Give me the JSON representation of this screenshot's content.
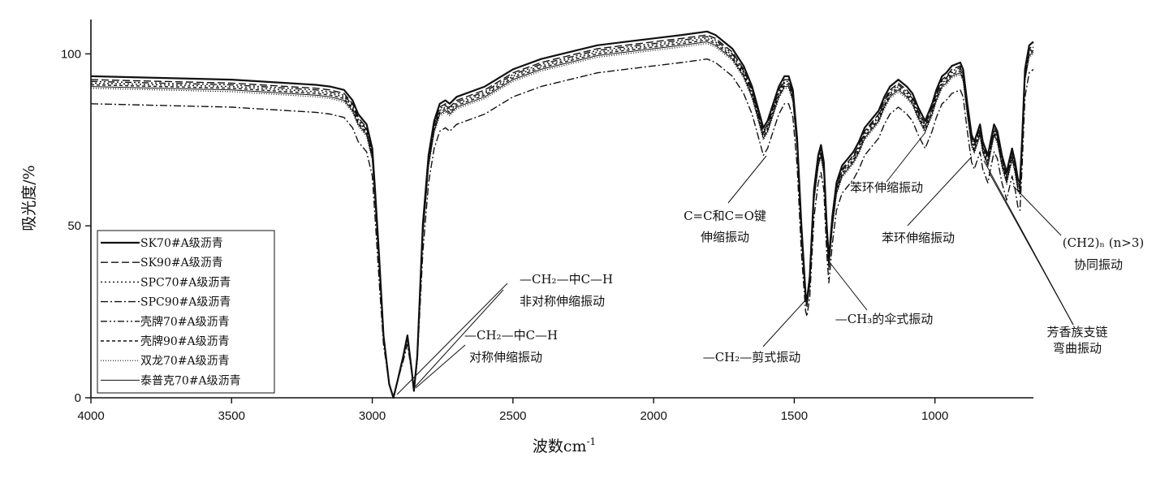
{
  "chart_data": {
    "type": "line",
    "xlabel": "波数cm",
    "xlabel_sup": "-1",
    "ylabel": "吸光度/%",
    "xlim": [
      4000,
      650
    ],
    "ylim": [
      0,
      110
    ],
    "x_reversed": true,
    "x_ticks": [
      4000,
      3500,
      3000,
      2500,
      2000,
      1500,
      1000
    ],
    "y_ticks": [
      0,
      50,
      100
    ],
    "grid": false,
    "legend_position": "center-left",
    "series": [
      {
        "name": "SK70#A级沥青",
        "style": "solid-thick",
        "offset": 0.5
      },
      {
        "name": "SK90#A级沥青",
        "style": "dashed",
        "offset": -0.5
      },
      {
        "name": "SPC70#A级沥青",
        "style": "dotted",
        "offset": -1.5
      },
      {
        "name": "SPC90#A级沥青",
        "style": "dashdot",
        "offset": -7.5
      },
      {
        "name": "壳牌70#A级沥青",
        "style": "dashdotdot",
        "offset": -1.0
      },
      {
        "name": "壳牌90#A级沥青",
        "style": "shortdash",
        "offset": -2.0
      },
      {
        "name": "双龙70#A级沥青",
        "style": "fine-dotted",
        "offset": -3.0
      },
      {
        "name": "泰普克70#A级沥青",
        "style": "solid-thin",
        "offset": -2.5
      }
    ],
    "base_curve": [
      [
        4000,
        93
      ],
      [
        3500,
        92
      ],
      [
        3300,
        91
      ],
      [
        3200,
        90.5
      ],
      [
        3150,
        90
      ],
      [
        3100,
        89
      ],
      [
        3070,
        86
      ],
      [
        3050,
        82
      ],
      [
        3020,
        79
      ],
      [
        3000,
        72
      ],
      [
        2990,
        60
      ],
      [
        2975,
        40
      ],
      [
        2960,
        18
      ],
      [
        2940,
        4
      ],
      [
        2925,
        0
      ],
      [
        2910,
        5
      ],
      [
        2890,
        12
      ],
      [
        2875,
        18
      ],
      [
        2860,
        8
      ],
      [
        2852,
        2
      ],
      [
        2840,
        12
      ],
      [
        2820,
        50
      ],
      [
        2800,
        70
      ],
      [
        2780,
        80
      ],
      [
        2760,
        85
      ],
      [
        2740,
        86
      ],
      [
        2725,
        85
      ],
      [
        2700,
        87
      ],
      [
        2600,
        90
      ],
      [
        2500,
        95
      ],
      [
        2400,
        98
      ],
      [
        2300,
        100
      ],
      [
        2200,
        102
      ],
      [
        2100,
        103
      ],
      [
        2000,
        104
      ],
      [
        1900,
        105
      ],
      [
        1810,
        106
      ],
      [
        1780,
        105
      ],
      [
        1720,
        101
      ],
      [
        1680,
        96
      ],
      [
        1650,
        90
      ],
      [
        1630,
        84
      ],
      [
        1610,
        78
      ],
      [
        1595,
        80
      ],
      [
        1575,
        85
      ],
      [
        1555,
        90
      ],
      [
        1535,
        93
      ],
      [
        1520,
        93
      ],
      [
        1505,
        89
      ],
      [
        1490,
        75
      ],
      [
        1475,
        50
      ],
      [
        1460,
        30
      ],
      [
        1455,
        28
      ],
      [
        1445,
        35
      ],
      [
        1430,
        60
      ],
      [
        1415,
        70
      ],
      [
        1405,
        73
      ],
      [
        1395,
        68
      ],
      [
        1385,
        50
      ],
      [
        1377,
        40
      ],
      [
        1365,
        52
      ],
      [
        1350,
        62
      ],
      [
        1330,
        67
      ],
      [
        1310,
        69
      ],
      [
        1290,
        71
      ],
      [
        1270,
        74
      ],
      [
        1250,
        78
      ],
      [
        1230,
        80
      ],
      [
        1200,
        83
      ],
      [
        1180,
        87
      ],
      [
        1160,
        90
      ],
      [
        1130,
        92
      ],
      [
        1100,
        90
      ],
      [
        1080,
        88
      ],
      [
        1060,
        84
      ],
      [
        1035,
        80
      ],
      [
        1010,
        85
      ],
      [
        995,
        89
      ],
      [
        975,
        93
      ],
      [
        960,
        94
      ],
      [
        940,
        96
      ],
      [
        910,
        97
      ],
      [
        900,
        95
      ],
      [
        885,
        85
      ],
      [
        870,
        76
      ],
      [
        860,
        74
      ],
      [
        848,
        77
      ],
      [
        840,
        79
      ],
      [
        830,
        74
      ],
      [
        812,
        70
      ],
      [
        800,
        75
      ],
      [
        790,
        79
      ],
      [
        778,
        77
      ],
      [
        762,
        70
      ],
      [
        745,
        65
      ],
      [
        740,
        67
      ],
      [
        726,
        72
      ],
      [
        715,
        68
      ],
      [
        705,
        63
      ],
      [
        698,
        62
      ],
      [
        690,
        75
      ],
      [
        680,
        95
      ],
      [
        665,
        102
      ],
      [
        650,
        103
      ]
    ],
    "annotations": [
      {
        "id": "ch2-asym",
        "lines": [
          "—CH₂—中C—H",
          "非对称伸缩振动"
        ]
      },
      {
        "id": "ch2-sym",
        "lines": [
          "—CH₂—中C—H",
          "对称伸缩振动"
        ]
      },
      {
        "id": "cc-co",
        "lines": [
          "C=C和C=O键",
          "伸缩振动"
        ]
      },
      {
        "id": "ch2-scissor",
        "lines": [
          "—CH₂—剪式振动"
        ]
      },
      {
        "id": "ch3-umbrella",
        "lines": [
          "—CH₃的伞式振动"
        ]
      },
      {
        "id": "benzene-1",
        "lines": [
          "苯环伸缩振动"
        ]
      },
      {
        "id": "benzene-2",
        "lines": [
          "苯环伸缩振动"
        ]
      },
      {
        "id": "ch2n",
        "lines": [
          "(CH2)ₙ (n>3)",
          "协同振动"
        ]
      },
      {
        "id": "aromatic",
        "lines": [
          "芳香族支链",
          "弯曲振动"
        ]
      }
    ]
  }
}
